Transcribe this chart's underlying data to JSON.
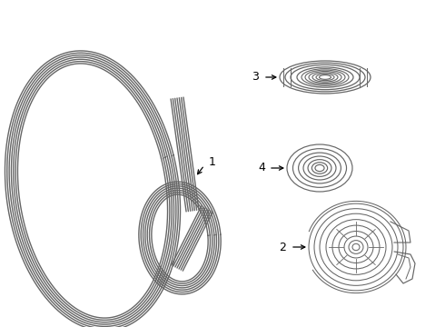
{
  "background_color": "#ffffff",
  "line_color": "#666666",
  "label_color": "#000000",
  "figure_width": 4.9,
  "figure_height": 3.6,
  "dpi": 100
}
